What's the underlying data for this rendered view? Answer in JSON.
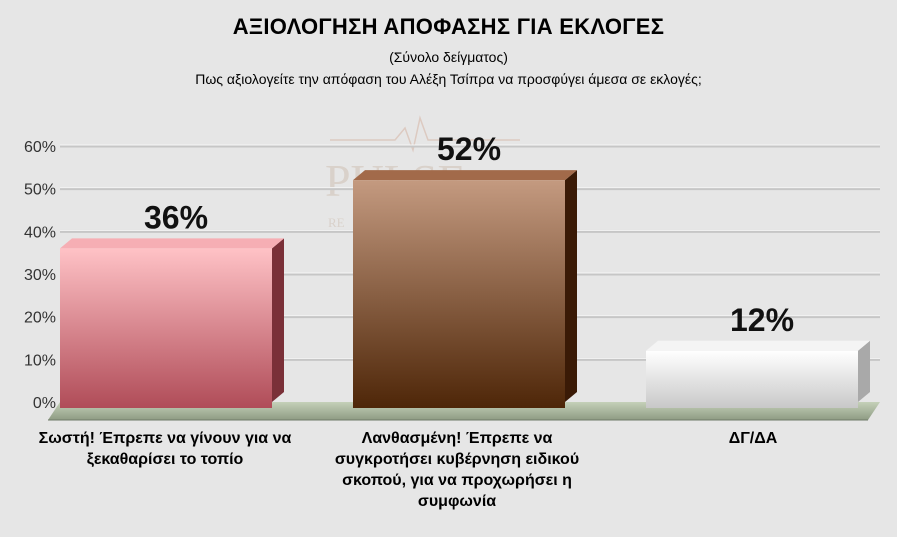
{
  "header": {
    "title": "ΑΞΙΟΛΟΓΗΣΗ ΑΠΟΦΑΣΗΣ ΓΙΑ ΕΚΛΟΓΕΣ",
    "subtitle": "(Σύνολο δείγματος)",
    "question": "Πως αξιολογείτε την απόφαση του Αλέξη Τσίπρα να προσφύγει άμεσα σε εκλογές;"
  },
  "watermark": {
    "brand": "PULSE",
    "sub": "RE"
  },
  "chart_data": {
    "type": "bar",
    "categories": [
      "Σωστή! Έπρεπε να γίνουν για να ξεκαθαρίσει το τοπίο",
      "Λανθασμένη! Έπρεπε να συγκροτήσει κυβέρνηση ειδικού σκοπού, για να προχωρήσει η συμφωνία",
      "ΔΓ/ΔΑ"
    ],
    "values": [
      36,
      52,
      12
    ],
    "data_labels": [
      "36%",
      "52%",
      "12%"
    ],
    "yticks": [
      "0%",
      "10%",
      "20%",
      "30%",
      "40%",
      "50%",
      "60%"
    ],
    "ylim": [
      0,
      60
    ],
    "grid": true,
    "colors": [
      "#d9848a",
      "#8a5535",
      "#ececec"
    ]
  }
}
